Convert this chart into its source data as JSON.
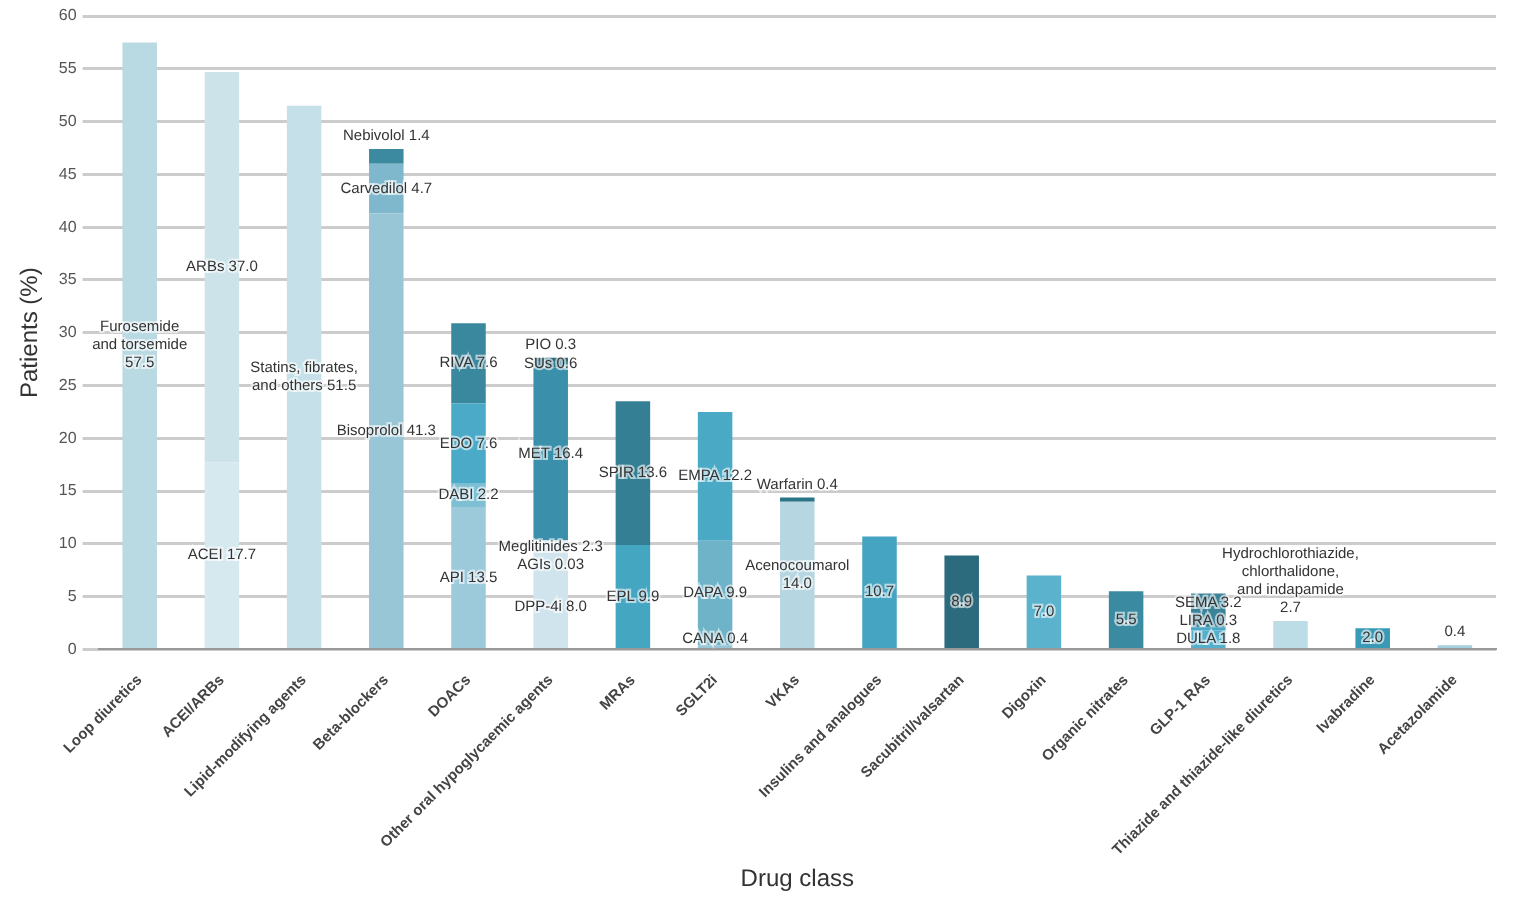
{
  "chart_data": {
    "type": "bar",
    "stacked": true,
    "xlabel": "Drug class",
    "ylabel": "Patients (%)",
    "categories": [
      "Loop diuretics",
      "ACEI/ARBs",
      "Lipid-modifying agents",
      "Beta-blockers",
      "DOACs",
      "Other oral hypoglycaemic agents",
      "MRAs",
      "SGLT2i",
      "VKAs",
      "Insulins and analogues",
      "Sacubitril/valsartan",
      "Digoxin",
      "Organic nitrates",
      "GLP-1 RAs",
      "Thiazide and thiazide-like diuretics",
      "Ivabradine",
      "Acetazolamide"
    ],
    "series": [
      {
        "values": [
          57.5,
          17.7,
          51.5,
          41.3,
          13.5,
          8.0,
          9.9,
          0.4,
          14.0,
          10.7,
          8.9,
          7.0,
          5.5,
          1.8,
          2.7,
          2.0,
          0.4
        ],
        "colors": [
          "#b9d9e3",
          "#d6e9ef",
          "#c5e0e8",
          "#99c6d7",
          "#9ccadb",
          "#cfe4ec",
          "#45a6c2",
          "#9ac6d6",
          "#b6d7e2",
          "#44a4c1",
          "#2c6b7d",
          "#5ab2cd",
          "#3a8aa2",
          "#55aecb",
          "#bcdce6",
          "#3a9ab5",
          "#a5d0de"
        ],
        "value_labels": [
          "Furosemide and torsemide 57.5",
          "ACEI 17.7",
          "Statins, fibrates, and others 51.5",
          "Bisoprolol 41.3",
          "API 13.5",
          "DPP-4i 8.0",
          "EPL 9.9",
          "CANA 0.4",
          "Acenocoumarol 14.0",
          "10.7",
          "8.9",
          "7.0",
          "5.5",
          "DULA 1.8",
          "Hydrochlorothiazide, chlorthalidone, and indapamide 2.7",
          "2.0",
          "0.4"
        ]
      },
      {
        "values": [
          null,
          37.0,
          null,
          4.7,
          2.2,
          0.03,
          13.6,
          9.9,
          0.4,
          null,
          null,
          null,
          null,
          0.3,
          null,
          null,
          null
        ],
        "colors": [
          "#b9d9e3",
          "#cde3ea",
          "#c5e0e8",
          "#7fb8cc",
          "#7ebfd3",
          "#c4dfe8",
          "#357f95",
          "#6fb3c9",
          "#2c7588",
          "#44a4c1",
          "#2c6b7d",
          "#5ab2cd",
          "#3a8aa2",
          "#4ba7c5",
          "#bcdce6",
          "#3a9ab5",
          "#a5d0de"
        ],
        "value_labels": [
          null,
          "ARBs 37.0",
          null,
          "Carvedilol 4.7",
          "DABI 2.2",
          "AGIs 0.03",
          "SPIR 13.6",
          "DAPA 9.9",
          "Warfarin 0.4",
          null,
          null,
          null,
          null,
          "LIRA 0.3",
          null,
          null,
          null
        ]
      },
      {
        "values": [
          null,
          null,
          null,
          1.4,
          7.6,
          2.3,
          null,
          12.2,
          null,
          null,
          null,
          null,
          null,
          3.2,
          null,
          null,
          null
        ],
        "colors": [
          "#b9d9e3",
          "#cde3ea",
          "#c5e0e8",
          "#3b8aa0",
          "#4aaac8",
          "#cfe4ec",
          "#357f95",
          "#4aaac6",
          "#2c7588",
          "#44a4c1",
          "#2c6b7d",
          "#5ab2cd",
          "#3a8aa2",
          "#3b8399",
          "#bcdce6",
          "#3a9ab5",
          "#a5d0de"
        ],
        "value_labels": [
          null,
          null,
          null,
          "Nebivolol 1.4",
          "EDO 7.6",
          "Meglitinides 2.3",
          null,
          "EMPA 12.2",
          null,
          null,
          null,
          null,
          null,
          "SEMA 3.2",
          null,
          null,
          null
        ]
      },
      {
        "values": [
          null,
          null,
          null,
          null,
          7.6,
          16.4,
          null,
          null,
          null,
          null,
          null,
          null,
          null,
          null,
          null,
          null,
          null
        ],
        "colors": [
          "#b9d9e3",
          "#cde3ea",
          "#c5e0e8",
          "#3b8aa0",
          "#3a889e",
          "#3a90ab",
          "#357f95",
          "#4aaac6",
          "#2c7588",
          "#44a4c1",
          "#2c6b7d",
          "#5ab2cd",
          "#3a8aa2",
          "#3b8399",
          "#bcdce6",
          "#3a9ab5",
          "#a5d0de"
        ],
        "value_labels": [
          null,
          null,
          null,
          null,
          "RIVA 7.6",
          "MET 16.4",
          null,
          null,
          null,
          null,
          null,
          null,
          null,
          null,
          null,
          null,
          null
        ]
      },
      {
        "values": [
          null,
          null,
          null,
          null,
          null,
          0.6,
          null,
          null,
          null,
          null,
          null,
          null,
          null,
          null,
          null,
          null,
          null
        ],
        "colors": [
          "#b9d9e3",
          "#cde3ea",
          "#c5e0e8",
          "#3b8aa0",
          "#3a889e",
          "#2f7a90",
          "#357f95",
          "#4aaac6",
          "#2c7588",
          "#44a4c1",
          "#2c6b7d",
          "#5ab2cd",
          "#3a8aa2",
          "#3b8399",
          "#bcdce6",
          "#3a9ab5",
          "#a5d0de"
        ],
        "value_labels": [
          null,
          null,
          null,
          null,
          null,
          "SUs 0.6",
          null,
          null,
          null,
          null,
          null,
          null,
          null,
          null,
          null,
          null,
          null
        ]
      },
      {
        "values": [
          null,
          null,
          null,
          null,
          null,
          0.3,
          null,
          null,
          null,
          null,
          null,
          null,
          null,
          null,
          null,
          null,
          null
        ],
        "colors": [
          "#b9d9e3",
          "#cde3ea",
          "#c5e0e8",
          "#3b8aa0",
          "#3a889e",
          "#2a6a7e",
          "#357f95",
          "#4aaac6",
          "#2c7588",
          "#44a4c1",
          "#2c6b7d",
          "#5ab2cd",
          "#3a8aa2",
          "#3b8399",
          "#bcdce6",
          "#3a9ab5",
          "#a5d0de"
        ],
        "value_labels": [
          null,
          null,
          null,
          null,
          null,
          "PIO 0.3",
          null,
          null,
          null,
          null,
          null,
          null,
          null,
          null,
          null,
          null,
          null
        ]
      }
    ],
    "ylim": [
      0,
      60
    ],
    "yticks": [
      0,
      5,
      10,
      15,
      20,
      25,
      30,
      35,
      40,
      45,
      50,
      55,
      60
    ],
    "grid": "y",
    "legend": false
  }
}
